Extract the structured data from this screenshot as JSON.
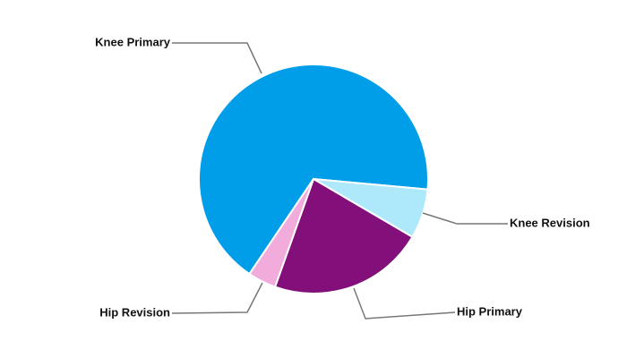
{
  "chart_data": {
    "type": "pie",
    "categories": [
      "Knee Primary",
      "Knee Revision",
      "Hip Primary",
      "Hip Revision"
    ],
    "values": [
      67,
      7,
      22,
      4
    ],
    "colors": [
      "#009de9",
      "#aee8fb",
      "#820f7a",
      "#f1acdc"
    ]
  }
}
